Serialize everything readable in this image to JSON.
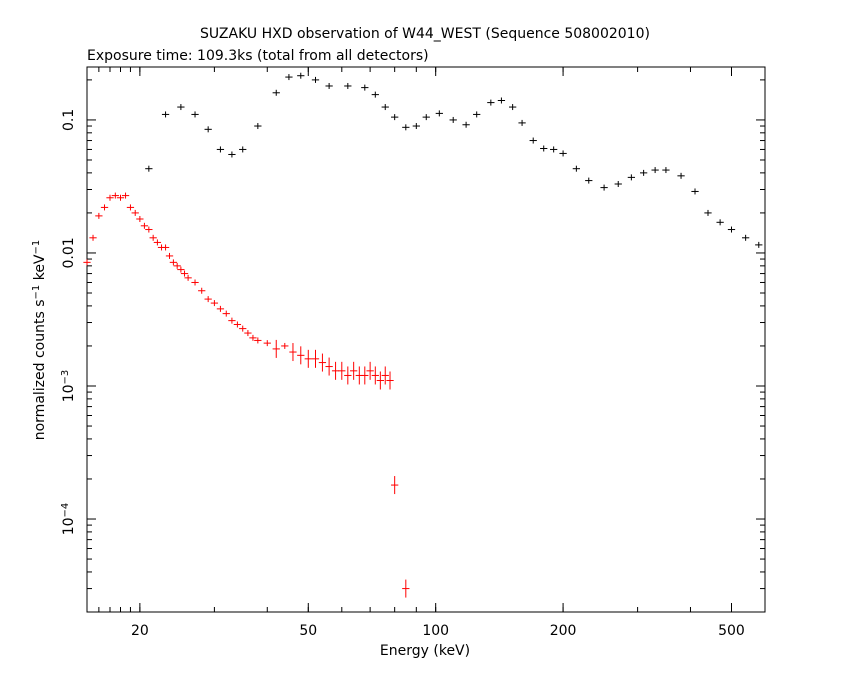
{
  "chart_data": {
    "type": "scatter",
    "title": "SUZAKU HXD observation of W44_WEST (Sequence 508002010)",
    "subtitle": "Exposure time: 109.3ks (total from all detectors)",
    "xlabel": "Energy (keV)",
    "ylabel": {
      "text": "normalized counts s",
      "sup1": "−1",
      "mid": " keV",
      "sup2": "−1"
    },
    "x_scale": "log",
    "y_scale": "log",
    "xlim": [
      15,
      600
    ],
    "ylim": [
      2e-05,
      0.25
    ],
    "x_ticks": [
      {
        "value": 20,
        "label": "20"
      },
      {
        "value": 50,
        "label": "50"
      },
      {
        "value": 100,
        "label": "100"
      },
      {
        "value": 200,
        "label": "200"
      },
      {
        "value": 500,
        "label": "500"
      }
    ],
    "y_ticks": [
      {
        "value": 0.1,
        "label": "0.1"
      },
      {
        "value": 0.01,
        "label": "0.01"
      },
      {
        "value": 0.001,
        "base": "10",
        "exp": "−3"
      },
      {
        "value": 0.0001,
        "base": "10",
        "exp": "−4"
      }
    ],
    "grid": false,
    "legend": "none",
    "series": [
      {
        "color": "#000000",
        "detector_group": "GSO",
        "points": [
          [
            21,
            0.043
          ],
          [
            23,
            0.11
          ],
          [
            25,
            0.125
          ],
          [
            27,
            0.11
          ],
          [
            29,
            0.085
          ],
          [
            31,
            0.06
          ],
          [
            33,
            0.055
          ],
          [
            35,
            0.06
          ],
          [
            38,
            0.09
          ],
          [
            42,
            0.16
          ],
          [
            45,
            0.21
          ],
          [
            48,
            0.215
          ],
          [
            52,
            0.2
          ],
          [
            56,
            0.18
          ],
          [
            62,
            0.18
          ],
          [
            68,
            0.175
          ],
          [
            72,
            0.155
          ],
          [
            76,
            0.125
          ],
          [
            80,
            0.105
          ],
          [
            85,
            0.088
          ],
          [
            90,
            0.09
          ],
          [
            95,
            0.105
          ],
          [
            102,
            0.112
          ],
          [
            110,
            0.1
          ],
          [
            118,
            0.092
          ],
          [
            125,
            0.11
          ],
          [
            135,
            0.135
          ],
          [
            143,
            0.14
          ],
          [
            152,
            0.125
          ],
          [
            160,
            0.095
          ],
          [
            170,
            0.07
          ],
          [
            180,
            0.061
          ],
          [
            190,
            0.06
          ],
          [
            200,
            0.056
          ],
          [
            215,
            0.043
          ],
          [
            230,
            0.035
          ],
          [
            250,
            0.031
          ],
          [
            270,
            0.033
          ],
          [
            290,
            0.037
          ],
          [
            310,
            0.04
          ],
          [
            330,
            0.042
          ],
          [
            350,
            0.042
          ],
          [
            380,
            0.038
          ],
          [
            410,
            0.029
          ],
          [
            440,
            0.02
          ],
          [
            470,
            0.017
          ],
          [
            500,
            0.015
          ],
          [
            540,
            0.013
          ],
          [
            580,
            0.0115
          ]
        ]
      },
      {
        "color": "#ff0000",
        "detector_group": "PIN",
        "points": [
          [
            15,
            0.0085
          ],
          [
            15.5,
            0.013
          ],
          [
            16,
            0.019
          ],
          [
            16.5,
            0.022
          ],
          [
            17,
            0.026
          ],
          [
            17.5,
            0.027
          ],
          [
            18,
            0.026
          ],
          [
            18.5,
            0.027
          ],
          [
            19,
            0.022
          ],
          [
            19.5,
            0.02
          ],
          [
            20,
            0.018
          ],
          [
            20.5,
            0.016
          ],
          [
            21,
            0.015
          ],
          [
            21.5,
            0.013
          ],
          [
            22,
            0.012
          ],
          [
            22.5,
            0.011
          ],
          [
            23,
            0.011
          ],
          [
            23.5,
            0.0095
          ],
          [
            24,
            0.0085
          ],
          [
            24.5,
            0.008
          ],
          [
            25,
            0.0075
          ],
          [
            25.5,
            0.007
          ],
          [
            26,
            0.0065
          ],
          [
            27,
            0.006
          ],
          [
            28,
            0.0052
          ],
          [
            29,
            0.0045
          ],
          [
            30,
            0.0042
          ],
          [
            31,
            0.0038
          ],
          [
            32,
            0.0035
          ],
          [
            33,
            0.0031
          ],
          [
            34,
            0.0029
          ],
          [
            35,
            0.0027
          ],
          [
            36,
            0.0025
          ],
          [
            37,
            0.0023
          ],
          [
            38,
            0.0022
          ],
          [
            40,
            0.0021
          ],
          [
            42,
            0.0019
          ],
          [
            44,
            0.002
          ],
          [
            46,
            0.0018
          ],
          [
            48,
            0.0017
          ],
          [
            50,
            0.0016
          ],
          [
            52,
            0.0016
          ],
          [
            54,
            0.0015
          ],
          [
            56,
            0.0014
          ],
          [
            58,
            0.0013
          ],
          [
            60,
            0.0013
          ],
          [
            62,
            0.0012
          ],
          [
            64,
            0.0013
          ],
          [
            66,
            0.0012
          ],
          [
            68,
            0.0012
          ],
          [
            70,
            0.0013
          ],
          [
            72,
            0.0012
          ],
          [
            74,
            0.0011
          ],
          [
            76,
            0.0012
          ],
          [
            78,
            0.0011
          ],
          [
            80,
            0.00018
          ],
          [
            85,
            3e-05
          ]
        ]
      }
    ]
  }
}
